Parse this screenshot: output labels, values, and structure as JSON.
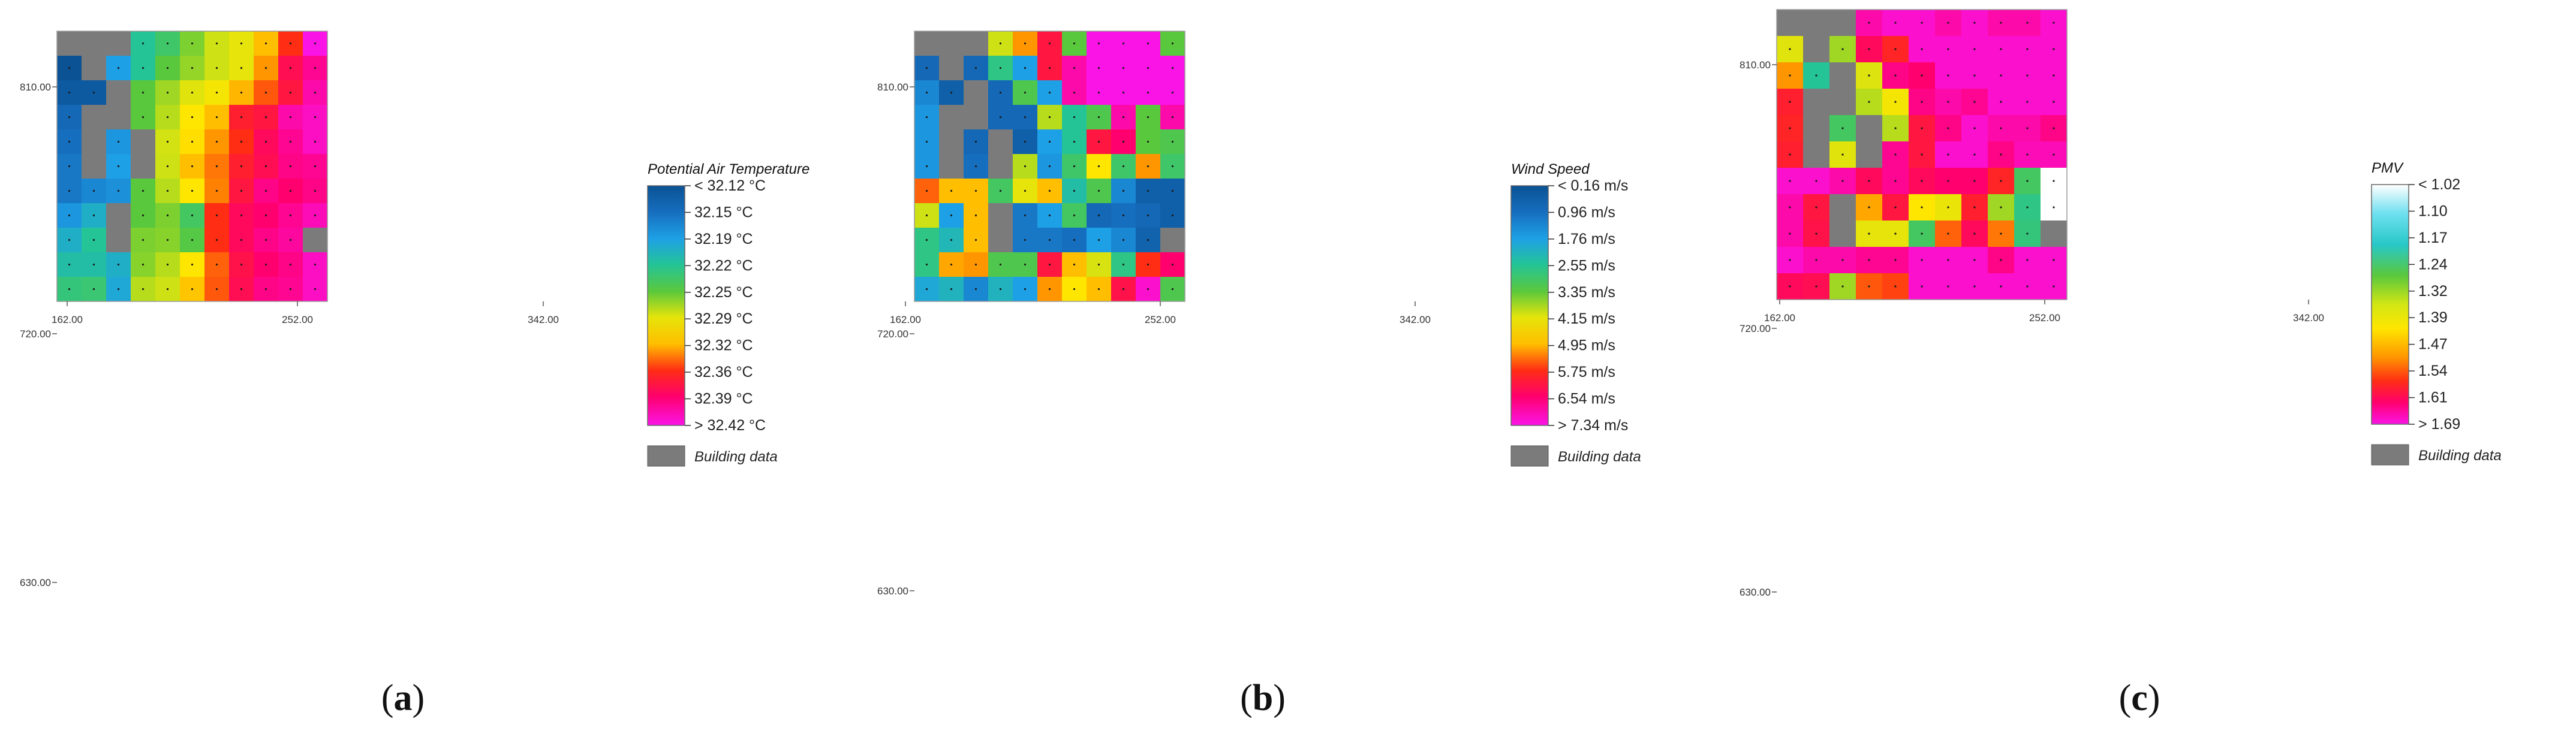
{
  "chart_data": [
    {
      "type": "heatmap",
      "panel": "a",
      "panel_label": "a",
      "legend_title": "Potential Air Temperature",
      "legend_labels": [
        "< 32.12 °C",
        "32.15  °C",
        "32.19  °C",
        "32.22  °C",
        "32.25  °C",
        "32.29  °C",
        "32.32  °C",
        "32.36  °C",
        "32.39  °C",
        "> 32.42 °C"
      ],
      "building_label": "Building data",
      "x_ticks": [
        "162.00",
        "252.00",
        "342.00"
      ],
      "y_ticks": [
        "810.00",
        "720.00",
        "630.00"
      ],
      "xlim": [
        162,
        360
      ],
      "ylim": [
        630,
        830
      ],
      "grid": [
        [
          "B",
          "B",
          "B",
          3,
          3.5,
          4.3,
          5,
          5.5,
          6.5,
          8,
          10
        ],
        [
          0,
          "B",
          2,
          3,
          4,
          4.5,
          5,
          5.5,
          7,
          8.7,
          9.3
        ],
        [
          0.3,
          0.3,
          "B",
          4,
          4.6,
          5.4,
          5.8,
          6.6,
          7.6,
          8.5,
          9.5
        ],
        [
          0.8,
          "B",
          "B",
          4,
          4.8,
          6,
          6.5,
          8.3,
          8.5,
          9.5,
          9.7
        ],
        [
          1,
          "B",
          1.8,
          "B",
          5.1,
          6.1,
          7,
          8,
          8.8,
          9.3,
          9.7
        ],
        [
          1.2,
          "B",
          2,
          "B",
          5,
          6.5,
          7.3,
          8.3,
          8.7,
          9.2,
          9.3
        ],
        [
          1.2,
          1.5,
          1.7,
          4,
          4.8,
          6,
          7.2,
          8.5,
          9.2,
          9,
          9.2
        ],
        [
          1.8,
          2.4,
          "B",
          4,
          4.3,
          3.6,
          8,
          8.8,
          9,
          9.3,
          9.6
        ],
        [
          2.4,
          3,
          "B",
          4.3,
          4.4,
          3.9,
          8,
          8.8,
          9.2,
          9.4,
          "B"
        ],
        [
          2.8,
          2.8,
          2.4,
          4.4,
          4.8,
          6,
          7.5,
          8.6,
          9,
          9.2,
          9.7
        ],
        [
          3.3,
          3.4,
          2.2,
          4.8,
          5,
          6.4,
          7.6,
          8.7,
          9.2,
          9.3,
          9.7
        ]
      ]
    },
    {
      "type": "heatmap",
      "panel": "b",
      "panel_label": "b",
      "legend_title": "Wind Speed",
      "legend_labels": [
        "< 0.16 m/s",
        "0.96  m/s",
        "1.76  m/s",
        "2.55  m/s",
        "3.35  m/s",
        "4.15  m/s",
        "4.95  m/s",
        "5.75  m/s",
        "6.54  m/s",
        "> 7.34 m/s"
      ],
      "building_label": "Building data",
      "x_ticks": [
        "162.00",
        "252.00",
        "342.00"
      ],
      "y_ticks": [
        "810.00",
        "720.00",
        "630.00"
      ],
      "xlim": [
        162,
        360
      ],
      "ylim": [
        630,
        830
      ],
      "grid": [
        [
          "B",
          "B",
          "B",
          5,
          7,
          8.5,
          4,
          10,
          10,
          10,
          4
        ],
        [
          0.8,
          "B",
          0.8,
          3.2,
          2,
          8.5,
          9.5,
          10,
          10,
          10,
          10
        ],
        [
          1.5,
          0.5,
          "B",
          0.8,
          3.8,
          2,
          9.5,
          10,
          10,
          10,
          10
        ],
        [
          1.8,
          "B",
          "B",
          0.8,
          0.8,
          4.8,
          3,
          3.8,
          9.5,
          4,
          9.5
        ],
        [
          1.8,
          "B",
          0.8,
          "B",
          0.5,
          2,
          3,
          8.5,
          9,
          4,
          3.8
        ],
        [
          1.8,
          "B",
          1,
          "B",
          4.8,
          1.8,
          3.5,
          6,
          3.5,
          7,
          3.5
        ],
        [
          7.5,
          6.5,
          6.5,
          3.6,
          5.5,
          6.5,
          2.8,
          3.8,
          1.5,
          0.5,
          0.5
        ],
        [
          5,
          2,
          6.5,
          "B",
          1.2,
          2,
          3.6,
          0.8,
          1,
          0.8,
          0.5
        ],
        [
          3.2,
          2.6,
          6.5,
          "B",
          1.2,
          1.2,
          1,
          2,
          1.5,
          0.6,
          "B"
        ],
        [
          3.2,
          6.8,
          7,
          3.8,
          3.8,
          8.5,
          6.5,
          5.2,
          3.2,
          8,
          9
        ],
        [
          2.2,
          2.5,
          1.5,
          2.5,
          2,
          7,
          6,
          6.5,
          8.6,
          9.8,
          3.8
        ]
      ]
    },
    {
      "type": "heatmap",
      "panel": "c",
      "panel_label": "c",
      "legend_title": "PMV",
      "legend_labels": [
        "< 1.02",
        "1.10",
        "1.17",
        "1.24",
        "1.32",
        "1.39",
        "1.47",
        "1.54",
        "1.61",
        "> 1.69"
      ],
      "building_label": "Building data",
      "x_ticks": [
        "162.00",
        "252.00",
        "342.00"
      ],
      "y_ticks": [
        "810.00",
        "720.00",
        "630.00"
      ],
      "xlim": [
        162,
        360
      ],
      "ylim": [
        630,
        830
      ],
      "grid": [
        [
          "B",
          "B",
          "B",
          9.5,
          9.8,
          9.8,
          9.5,
          9.8,
          9.5,
          9.5,
          9.8
        ],
        [
          5.4,
          "B",
          4.6,
          8.8,
          8.2,
          9.8,
          9.8,
          9.8,
          9.8,
          9.8,
          9.8
        ],
        [
          7,
          3,
          "B",
          5.3,
          9.2,
          9,
          9.8,
          9.8,
          9.8,
          9.8,
          9.8
        ],
        [
          8.3,
          "B",
          "B",
          4.8,
          5.8,
          9.2,
          9.5,
          9.3,
          9.8,
          9.8,
          9.8
        ],
        [
          8.2,
          "B",
          3.6,
          "B",
          4.8,
          8.5,
          9.2,
          9.8,
          9.5,
          9.5,
          9.2
        ],
        [
          8.3,
          "B",
          5.4,
          "B",
          9.3,
          8.5,
          9.8,
          9.8,
          9.2,
          9.6,
          9.6
        ],
        [
          9.8,
          9.8,
          9.5,
          8.8,
          9.3,
          8.8,
          9,
          9,
          8.2,
          3.6,
          -0.5
        ],
        [
          9.5,
          8.5,
          "B",
          6.8,
          8.5,
          6,
          5.6,
          8.3,
          4.6,
          3.2,
          -0.5
        ],
        [
          9.5,
          8.6,
          "B",
          5.5,
          5.5,
          3.6,
          7.5,
          8.8,
          7.3,
          3.3,
          "B"
        ],
        [
          9.8,
          9.5,
          9.5,
          9.3,
          9.3,
          9.8,
          9.8,
          9.8,
          9.2,
          9.8,
          9.8
        ],
        [
          8.8,
          8.7,
          4.6,
          7.6,
          7.8,
          9.8,
          9.8,
          9.8,
          9.8,
          9.8,
          9.8
        ]
      ]
    }
  ]
}
